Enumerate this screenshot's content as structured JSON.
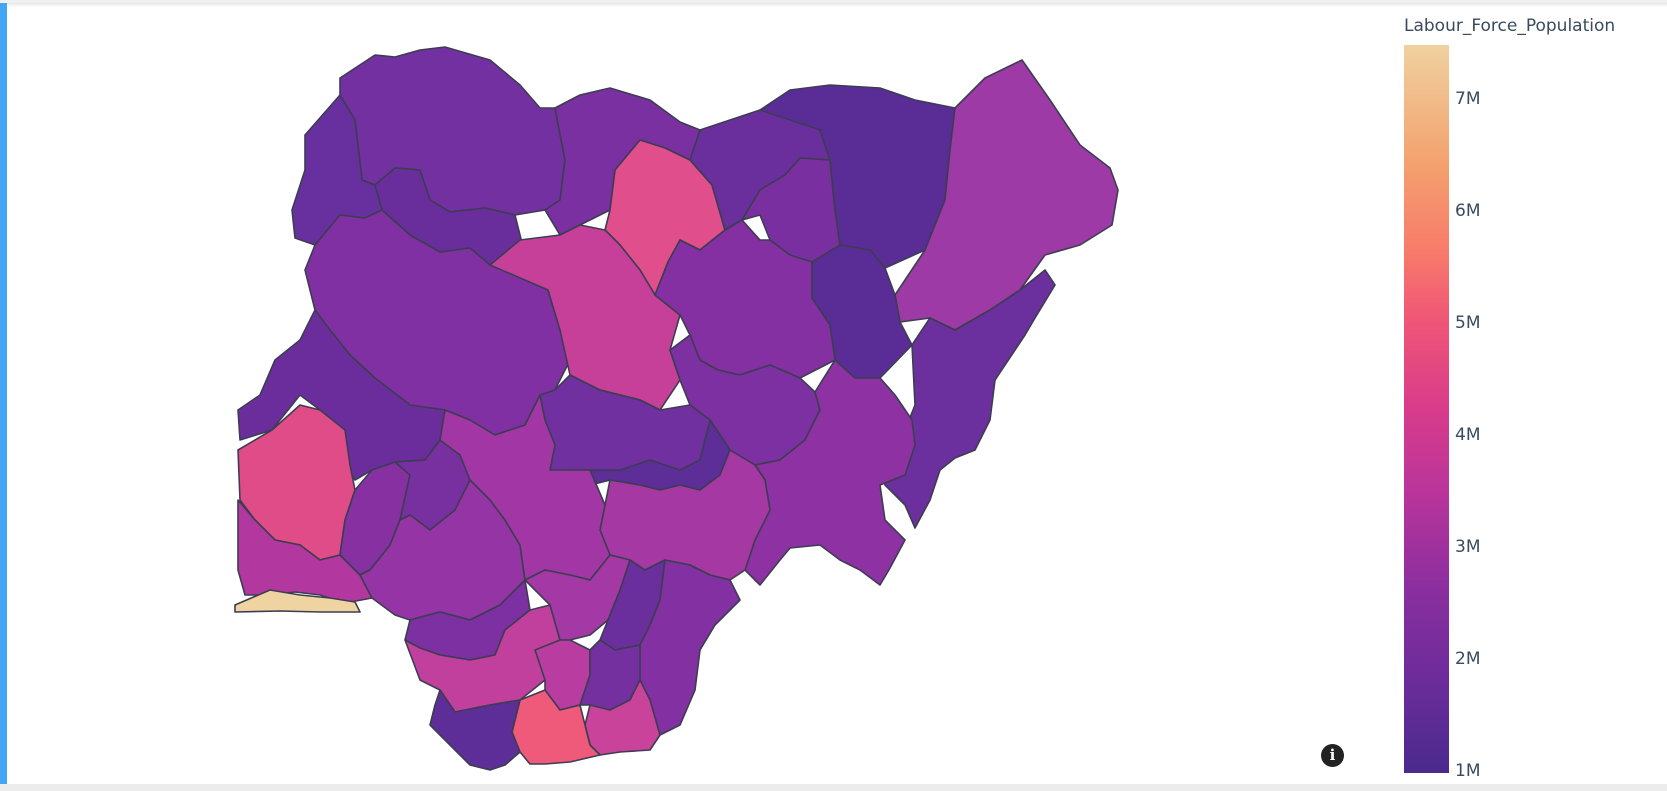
{
  "colorbar": {
    "title": "Labour_Force_Population",
    "ticks": [
      "7M",
      "6M",
      "5M",
      "4M",
      "3M",
      "2M",
      "1M"
    ]
  },
  "colors": {
    "accent": "#42a5f5",
    "scale_low": "#4a2a8c",
    "scale_high": "#efd1a0"
  },
  "icons": {
    "info": "info-icon"
  },
  "info_glyph": "i"
}
